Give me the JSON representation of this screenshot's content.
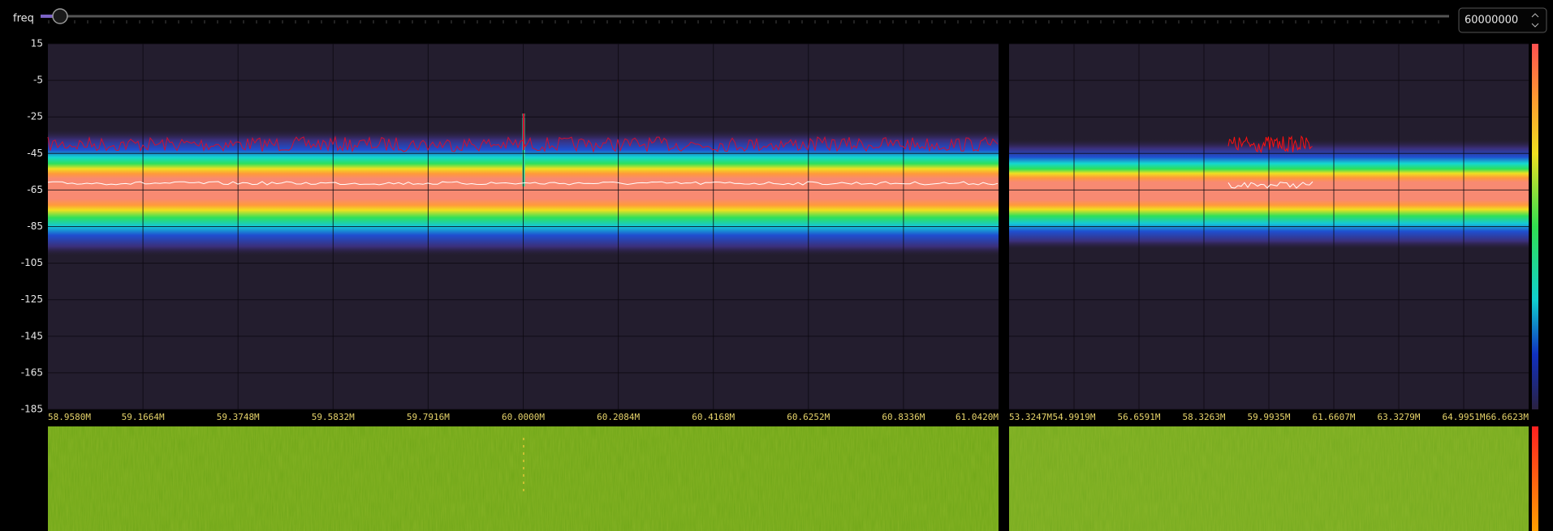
{
  "controls": {
    "label": "freq",
    "value": "60000000"
  },
  "spectrum": {
    "yticks": [
      15,
      -5,
      -25,
      -45,
      -65,
      -85,
      -105,
      -125,
      -145,
      -165,
      -185
    ],
    "xticks": [
      "58.9580M",
      "59.1664M",
      "59.3748M",
      "59.5832M",
      "59.7916M",
      "60.0000M",
      "60.2084M",
      "60.4168M",
      "60.6252M",
      "60.8336M",
      "61.0420M"
    ]
  },
  "overview": {
    "xticks": [
      "53.3247M",
      "54.9919M",
      "56.6591M",
      "58.3263M",
      "59.9935M",
      "61.6607M",
      "63.3279M",
      "64.9951M",
      "66.6623M"
    ]
  }
}
